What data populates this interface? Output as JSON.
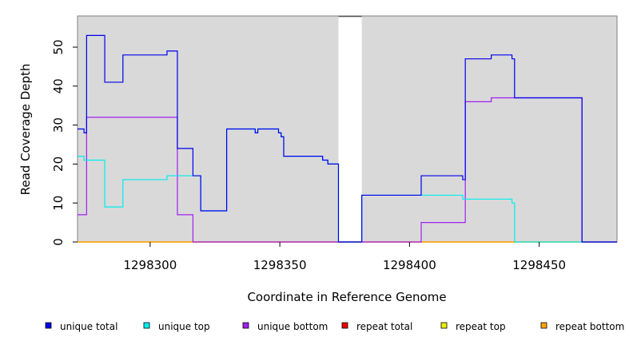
{
  "chart_data": {
    "type": "line",
    "xlabel": "Coordinate in Reference Genome",
    "ylabel": "Read Coverage Depth",
    "xlim": [
      1298272,
      1298480
    ],
    "ylim": [
      0,
      58
    ],
    "x_ticks": [
      1298300,
      1298350,
      1298400,
      1298450
    ],
    "x_tick_labels": [
      "1298300",
      "1298350",
      "1298400",
      "1298450"
    ],
    "y_ticks": [
      0,
      10,
      20,
      30,
      40,
      50
    ],
    "y_tick_labels": [
      "0",
      "10",
      "20",
      "30",
      "40",
      "50"
    ],
    "background": "#d9d9d9",
    "gap_regions": [
      [
        1298372.6,
        1298381.6
      ]
    ],
    "legend_position": "bottom",
    "series": [
      {
        "name": "unique total",
        "color": "#0000ee",
        "points": [
          [
            1298272,
            29
          ],
          [
            1298274.5,
            29
          ],
          [
            1298274.5,
            28
          ],
          [
            1298275.5,
            28
          ],
          [
            1298275.5,
            53
          ],
          [
            1298282.5,
            53
          ],
          [
            1298282.5,
            41
          ],
          [
            1298289.5,
            41
          ],
          [
            1298289.5,
            48
          ],
          [
            1298306.5,
            48
          ],
          [
            1298306.5,
            49
          ],
          [
            1298310.5,
            49
          ],
          [
            1298310.5,
            24
          ],
          [
            1298316.5,
            24
          ],
          [
            1298316.5,
            17
          ],
          [
            1298319.5,
            17
          ],
          [
            1298319.5,
            8
          ],
          [
            1298329.5,
            8
          ],
          [
            1298329.5,
            29
          ],
          [
            1298340.5,
            29
          ],
          [
            1298340.5,
            28
          ],
          [
            1298341.5,
            28
          ],
          [
            1298341.5,
            29
          ],
          [
            1298349.5,
            29
          ],
          [
            1298349.5,
            28
          ],
          [
            1298350.5,
            28
          ],
          [
            1298350.5,
            27
          ],
          [
            1298351.5,
            27
          ],
          [
            1298351.5,
            22
          ],
          [
            1298366.5,
            22
          ],
          [
            1298366.5,
            21
          ],
          [
            1298368.5,
            21
          ],
          [
            1298368.5,
            20
          ],
          [
            1298372.6,
            20
          ],
          [
            1298372.6,
            0
          ],
          [
            1298381.6,
            0
          ],
          [
            1298381.6,
            12
          ],
          [
            1298404.5,
            12
          ],
          [
            1298404.5,
            17
          ],
          [
            1298420.5,
            17
          ],
          [
            1298420.5,
            16
          ],
          [
            1298421.5,
            16
          ],
          [
            1298421.5,
            47
          ],
          [
            1298431.5,
            47
          ],
          [
            1298431.5,
            48
          ],
          [
            1298439.5,
            48
          ],
          [
            1298439.5,
            47
          ],
          [
            1298440.5,
            47
          ],
          [
            1298440.5,
            37
          ],
          [
            1298466.5,
            37
          ],
          [
            1298466.5,
            0
          ],
          [
            1298480,
            0
          ]
        ]
      },
      {
        "name": "unique top",
        "color": "#00eeee",
        "points": [
          [
            1298272,
            22
          ],
          [
            1298274.5,
            22
          ],
          [
            1298274.5,
            21
          ],
          [
            1298282.5,
            21
          ],
          [
            1298282.5,
            9
          ],
          [
            1298289.5,
            9
          ],
          [
            1298289.5,
            16
          ],
          [
            1298306.5,
            16
          ],
          [
            1298306.5,
            17
          ],
          [
            1298319.5,
            17
          ],
          [
            1298319.5,
            8
          ],
          [
            1298329.5,
            8
          ],
          [
            1298329.5,
            29
          ],
          [
            1298340.5,
            29
          ],
          [
            1298340.5,
            28
          ],
          [
            1298341.5,
            28
          ],
          [
            1298341.5,
            29
          ],
          [
            1298349.5,
            29
          ],
          [
            1298349.5,
            28
          ],
          [
            1298350.5,
            28
          ],
          [
            1298350.5,
            27
          ],
          [
            1298351.5,
            27
          ],
          [
            1298351.5,
            22
          ],
          [
            1298366.5,
            22
          ],
          [
            1298366.5,
            21
          ],
          [
            1298368.5,
            21
          ],
          [
            1298368.5,
            20
          ],
          [
            1298372.6,
            20
          ],
          [
            1298372.6,
            0
          ],
          [
            1298381.6,
            0
          ],
          [
            1298381.6,
            12
          ],
          [
            1298420.5,
            12
          ],
          [
            1298420.5,
            11
          ],
          [
            1298439.5,
            11
          ],
          [
            1298439.5,
            10
          ],
          [
            1298440.5,
            10
          ],
          [
            1298440.5,
            0
          ],
          [
            1298480,
            0
          ]
        ]
      },
      {
        "name": "unique bottom",
        "color": "#a020f0",
        "points": [
          [
            1298272,
            7
          ],
          [
            1298275.5,
            7
          ],
          [
            1298275.5,
            32
          ],
          [
            1298310.5,
            32
          ],
          [
            1298310.5,
            7
          ],
          [
            1298316.5,
            7
          ],
          [
            1298316.5,
            0
          ],
          [
            1298404.5,
            0
          ],
          [
            1298404.5,
            5
          ],
          [
            1298421.5,
            5
          ],
          [
            1298421.5,
            36
          ],
          [
            1298431.5,
            36
          ],
          [
            1298431.5,
            37
          ],
          [
            1298466.5,
            37
          ],
          [
            1298466.5,
            0
          ],
          [
            1298480,
            0
          ]
        ]
      },
      {
        "name": "repeat total",
        "color": "#ee0000",
        "points": [
          [
            1298272,
            0
          ],
          [
            1298480,
            0
          ]
        ]
      },
      {
        "name": "repeat top",
        "color": "#eeee00",
        "points": [
          [
            1298272,
            0
          ],
          [
            1298480,
            0
          ]
        ]
      },
      {
        "name": "repeat bottom",
        "color": "#ffa500",
        "points": [
          [
            1298272,
            0
          ],
          [
            1298480,
            0
          ]
        ]
      }
    ]
  }
}
